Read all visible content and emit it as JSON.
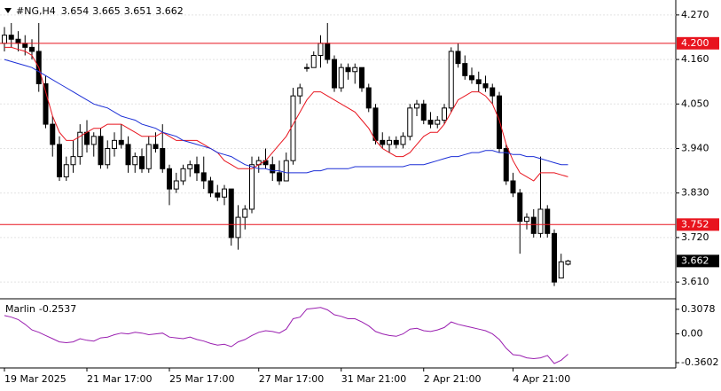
{
  "chart_data": [
    {
      "type": "candlestick",
      "title": "#NG,H4",
      "categories": [
        "19 Mar 2025",
        null,
        null,
        null,
        null,
        null,
        null,
        null,
        null,
        null,
        null,
        null,
        "21 Mar 17:00",
        null,
        null,
        null,
        null,
        null,
        null,
        null,
        null,
        null,
        null,
        null,
        "25 Mar 17:00",
        null,
        null,
        null,
        null,
        null,
        null,
        null,
        null,
        null,
        null,
        null,
        null,
        "27 Mar 17:00",
        null,
        null,
        null,
        null,
        null,
        null,
        null,
        null,
        null,
        null,
        null,
        "31 Mar 21:00",
        null,
        null,
        null,
        null,
        null,
        null,
        null,
        null,
        null,
        null,
        null,
        "2 Apr 21:00",
        null,
        null,
        null,
        null,
        null,
        null,
        null,
        null,
        null,
        null,
        null,
        null,
        "4 Apr 21:00",
        null,
        null,
        null,
        null,
        null,
        null,
        null,
        null
      ],
      "open": [
        4.2,
        4.22,
        4.21,
        4.2,
        4.19,
        4.18,
        4.1,
        4.0,
        3.95,
        3.87,
        3.9,
        3.92,
        3.98,
        3.95,
        3.97,
        3.9,
        3.94,
        3.96,
        3.95,
        3.9,
        3.92,
        3.89,
        3.95,
        3.94,
        3.89,
        3.84,
        3.86,
        3.89,
        3.9,
        3.88,
        3.86,
        3.83,
        3.82,
        3.84,
        3.72,
        3.77,
        3.79,
        3.9,
        3.91,
        3.9,
        3.88,
        3.86,
        3.91,
        4.07,
        4.14,
        4.14,
        4.17,
        4.2,
        4.16,
        4.09,
        4.14,
        4.13,
        4.14,
        4.09,
        4.04,
        3.96,
        3.95,
        3.96,
        3.95,
        3.97,
        4.04,
        4.05,
        4.01,
        4.0,
        4.01,
        4.04,
        4.18,
        4.15,
        4.12,
        4.11,
        4.1,
        4.09,
        4.07,
        3.94,
        3.86,
        3.83,
        3.76,
        3.77,
        3.73,
        3.79,
        3.73,
        3.62,
        3.654
      ],
      "high": [
        4.24,
        4.25,
        4.23,
        4.22,
        4.21,
        4.25,
        4.12,
        4.02,
        3.97,
        3.92,
        3.96,
        4.0,
        4.01,
        3.98,
        3.99,
        3.96,
        3.98,
        4.0,
        3.97,
        3.93,
        3.94,
        3.97,
        3.98,
        4.0,
        3.9,
        3.88,
        3.9,
        3.91,
        3.92,
        3.92,
        3.87,
        3.85,
        3.85,
        3.84,
        3.8,
        3.8,
        3.92,
        3.92,
        3.94,
        3.92,
        3.91,
        3.93,
        4.09,
        4.1,
        4.15,
        4.18,
        4.22,
        4.25,
        4.17,
        4.15,
        4.15,
        4.15,
        4.14,
        4.1,
        4.05,
        3.98,
        3.97,
        3.97,
        3.98,
        4.05,
        4.06,
        4.06,
        4.03,
        4.02,
        4.05,
        4.19,
        4.2,
        4.17,
        4.14,
        4.13,
        4.12,
        4.1,
        4.08,
        3.95,
        3.88,
        3.84,
        3.78,
        3.79,
        3.92,
        3.8,
        3.74,
        3.68,
        3.665
      ],
      "low": [
        4.18,
        4.19,
        4.18,
        4.17,
        4.16,
        4.08,
        3.99,
        3.92,
        3.86,
        3.86,
        3.88,
        3.9,
        3.93,
        3.92,
        3.89,
        3.89,
        3.92,
        3.94,
        3.88,
        3.88,
        3.88,
        3.88,
        3.93,
        3.88,
        3.8,
        3.83,
        3.85,
        3.87,
        3.86,
        3.84,
        3.82,
        3.81,
        3.8,
        3.7,
        3.69,
        3.74,
        3.78,
        3.88,
        3.89,
        3.86,
        3.85,
        3.86,
        3.9,
        4.05,
        4.13,
        4.14,
        4.14,
        4.15,
        4.08,
        4.08,
        4.11,
        4.1,
        4.08,
        4.03,
        3.95,
        3.94,
        3.93,
        3.94,
        3.94,
        3.96,
        4.02,
        4.0,
        3.99,
        3.99,
        4.0,
        4.03,
        4.14,
        4.11,
        4.1,
        4.08,
        4.08,
        4.05,
        3.93,
        3.85,
        3.82,
        3.68,
        3.74,
        3.72,
        3.72,
        3.72,
        3.6,
        3.62,
        3.651
      ],
      "close": [
        4.22,
        4.21,
        4.2,
        4.19,
        4.18,
        4.1,
        4.0,
        3.95,
        3.87,
        3.9,
        3.92,
        3.98,
        3.95,
        3.97,
        3.9,
        3.94,
        3.96,
        3.95,
        3.9,
        3.92,
        3.89,
        3.95,
        3.94,
        3.89,
        3.84,
        3.86,
        3.89,
        3.9,
        3.88,
        3.86,
        3.83,
        3.82,
        3.84,
        3.72,
        3.77,
        3.79,
        3.9,
        3.91,
        3.9,
        3.88,
        3.86,
        3.91,
        4.07,
        4.09,
        4.14,
        4.17,
        4.2,
        4.16,
        4.09,
        4.14,
        4.13,
        4.14,
        4.09,
        4.04,
        3.96,
        3.95,
        3.96,
        3.95,
        3.97,
        4.04,
        4.05,
        4.01,
        4.0,
        4.01,
        4.04,
        4.18,
        4.15,
        4.12,
        4.11,
        4.1,
        4.09,
        4.07,
        3.94,
        3.86,
        3.83,
        3.76,
        3.77,
        3.73,
        3.79,
        3.73,
        3.61,
        3.66,
        3.662
      ],
      "series": [
        {
          "color": "#e8141e",
          "values": [
            4.19,
            4.19,
            4.185,
            4.18,
            4.17,
            4.14,
            4.08,
            4.02,
            3.98,
            3.96,
            3.96,
            3.97,
            3.98,
            3.99,
            3.99,
            4.0,
            4.0,
            4.0,
            3.99,
            3.98,
            3.97,
            3.97,
            3.97,
            3.98,
            3.97,
            3.96,
            3.96,
            3.96,
            3.96,
            3.95,
            3.94,
            3.93,
            3.91,
            3.9,
            3.89,
            3.89,
            3.89,
            3.9,
            3.91,
            3.93,
            3.95,
            3.97,
            4.0,
            4.03,
            4.06,
            4.08,
            4.08,
            4.07,
            4.06,
            4.05,
            4.04,
            4.03,
            4.01,
            3.99,
            3.96,
            3.94,
            3.93,
            3.92,
            3.92,
            3.93,
            3.95,
            3.97,
            3.98,
            3.98,
            4.0,
            4.03,
            4.06,
            4.07,
            4.08,
            4.08,
            4.07,
            4.05,
            4.01,
            3.95,
            3.91,
            3.88,
            3.87,
            3.86,
            3.88,
            3.88,
            3.88,
            3.875,
            3.87
          ]
        },
        {
          "color": "#1c2fd6",
          "values": [
            4.16,
            4.155,
            4.15,
            4.145,
            4.14,
            4.13,
            4.12,
            4.11,
            4.1,
            4.09,
            4.08,
            4.07,
            4.06,
            4.05,
            4.045,
            4.04,
            4.03,
            4.02,
            4.015,
            4.01,
            4.0,
            3.995,
            3.99,
            3.98,
            3.975,
            3.97,
            3.96,
            3.955,
            3.95,
            3.945,
            3.94,
            3.93,
            3.925,
            3.92,
            3.91,
            3.9,
            3.895,
            3.89,
            3.89,
            3.885,
            3.885,
            3.88,
            3.88,
            3.88,
            3.88,
            3.885,
            3.885,
            3.89,
            3.89,
            3.89,
            3.89,
            3.895,
            3.895,
            3.895,
            3.895,
            3.895,
            3.895,
            3.895,
            3.895,
            3.9,
            3.9,
            3.9,
            3.905,
            3.91,
            3.915,
            3.92,
            3.92,
            3.925,
            3.93,
            3.93,
            3.935,
            3.935,
            3.93,
            3.93,
            3.925,
            3.925,
            3.92,
            3.92,
            3.915,
            3.91,
            3.905,
            3.9,
            3.9
          ]
        }
      ],
      "hlines": [
        {
          "value": 4.2,
          "label": "4.200",
          "color": "#e8141e"
        },
        {
          "value": 3.752,
          "label": "3.752",
          "color": "#e8141e"
        }
      ],
      "ylim": [
        3.573,
        4.296
      ],
      "yticks": [
        {
          "value": 4.27,
          "label": "4.270"
        },
        {
          "value": 4.16,
          "label": "4.160"
        },
        {
          "value": 4.05,
          "label": "4.050"
        },
        {
          "value": 3.94,
          "label": "3.940"
        },
        {
          "value": 3.83,
          "label": "3.830"
        },
        {
          "value": 3.72,
          "label": "3.720"
        },
        {
          "value": 3.61,
          "label": "3.610"
        }
      ],
      "grid": true
    },
    {
      "type": "line",
      "title": "Marlin",
      "color": "#9a1fb0",
      "values": [
        0.23,
        0.21,
        0.18,
        0.12,
        0.05,
        0.02,
        -0.02,
        -0.06,
        -0.1,
        -0.11,
        -0.1,
        -0.06,
        -0.08,
        -0.09,
        -0.05,
        -0.04,
        -0.01,
        0.01,
        0.0,
        0.02,
        0.01,
        -0.01,
        0.0,
        0.01,
        -0.04,
        -0.05,
        -0.06,
        -0.04,
        -0.07,
        -0.09,
        -0.12,
        -0.14,
        -0.13,
        -0.16,
        -0.1,
        -0.07,
        -0.02,
        0.02,
        0.04,
        0.03,
        0.01,
        0.06,
        0.19,
        0.21,
        0.31,
        0.32,
        0.33,
        0.3,
        0.24,
        0.22,
        0.19,
        0.19,
        0.15,
        0.1,
        0.03,
        0.0,
        -0.02,
        -0.03,
        0.0,
        0.06,
        0.07,
        0.04,
        0.03,
        0.05,
        0.08,
        0.15,
        0.12,
        0.1,
        0.08,
        0.06,
        0.04,
        0.0,
        -0.07,
        -0.18,
        -0.26,
        -0.27,
        -0.3,
        -0.31,
        -0.3,
        -0.27,
        -0.37,
        -0.33,
        -0.2537
      ],
      "ylim": [
        -0.426,
        0.417
      ],
      "yticks": [
        0.3078,
        {
          "value": 0,
          "label": "0.00"
        },
        -0.3602
      ]
    }
  ]
}
